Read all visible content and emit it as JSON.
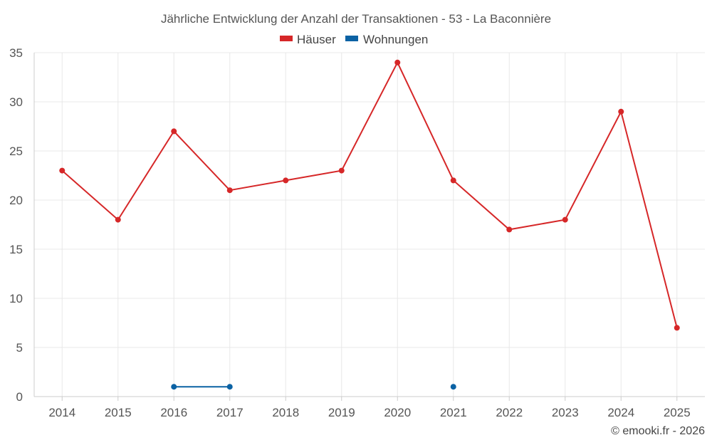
{
  "chart_data": {
    "type": "line",
    "title": "Jährliche Entwicklung der Anzahl der Transaktionen - 53 - La Baconnière",
    "categories": [
      "2014",
      "2015",
      "2016",
      "2017",
      "2018",
      "2019",
      "2020",
      "2021",
      "2022",
      "2023",
      "2024",
      "2025"
    ],
    "ylim": [
      0,
      35
    ],
    "yticks": [
      0,
      5,
      10,
      15,
      20,
      25,
      30,
      35
    ],
    "grid": true,
    "legend_position": "top-center",
    "series": [
      {
        "name": "Häuser",
        "color": "#d62728",
        "values": [
          23,
          18,
          27,
          21,
          22,
          23,
          34,
          22,
          17,
          18,
          29,
          7
        ]
      },
      {
        "name": "Wohnungen",
        "color": "#0b62a4",
        "values": [
          null,
          null,
          1,
          1,
          null,
          null,
          null,
          1,
          null,
          null,
          null,
          null
        ]
      }
    ]
  },
  "credit": "© emooki.fr - 2026"
}
